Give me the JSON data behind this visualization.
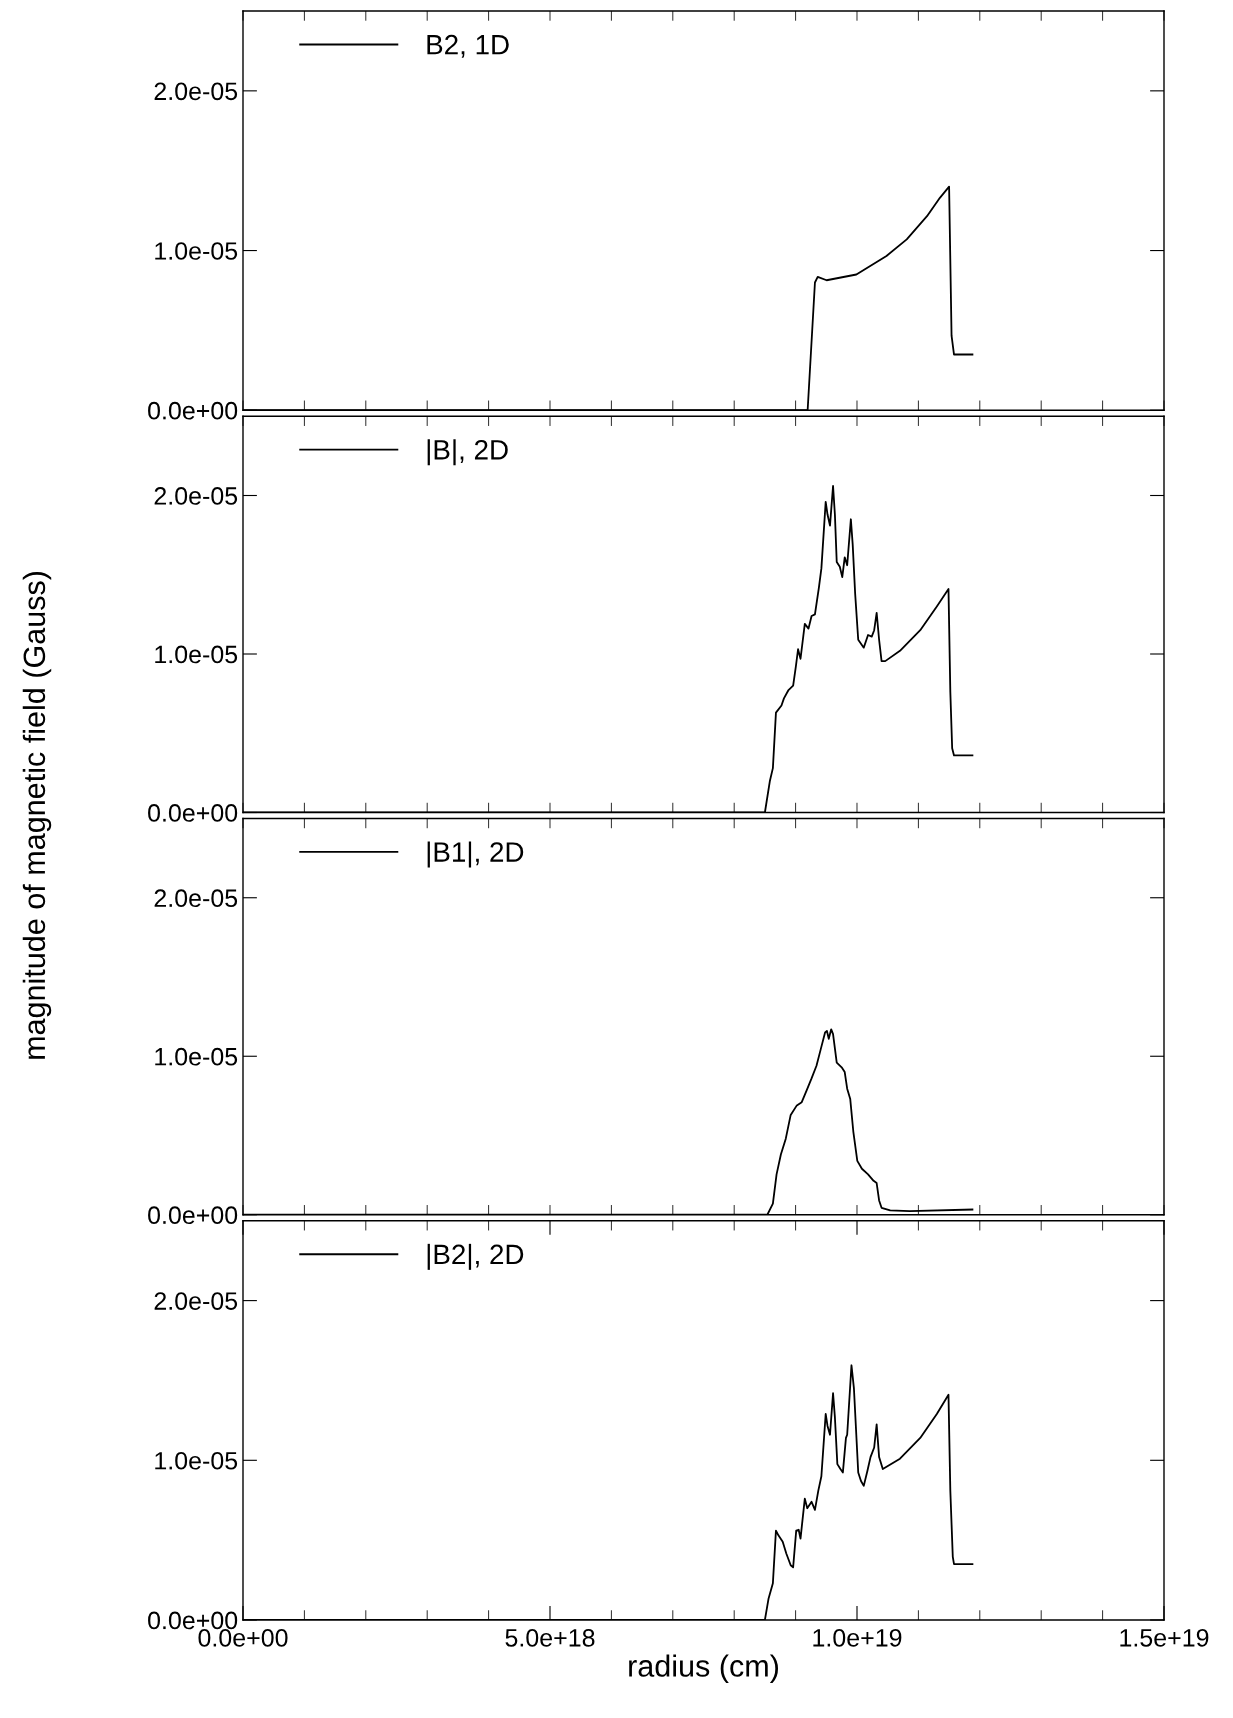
{
  "chart_data": [
    {
      "type": "line",
      "ylabel": "magnitude of magnetic field (Gauss)",
      "legend": "top left",
      "tick_labels": "y",
      "grid": false,
      "series": [
        {
          "name": "B2, 1D",
          "color": "#000000",
          "x": [
            0,
            9.196e+18,
            9.315e+18,
            9.36e+18,
            9.505e+18,
            9.99e+18,
            1.048e+19,
            1.081e+19,
            1.114e+19,
            1.135e+19,
            1.15e+19,
            1.154e+19,
            1.158e+19,
            1.188e+19
          ],
          "values": [
            0,
            0,
            8e-06,
            8.35e-06,
            8.14e-06,
            8.5e-06,
            9.66e-06,
            1.07e-05,
            1.215e-05,
            1.33e-05,
            1.4e-05,
            4.67e-06,
            3.49e-06,
            3.49e-06
          ]
        }
      ],
      "xlim": [
        0,
        1.5e+19
      ],
      "xticks": [
        {
          "value": 0,
          "label": null
        },
        {
          "value": 1e+18,
          "label": null
        },
        {
          "value": 2e+18,
          "label": null
        },
        {
          "value": 3e+18,
          "label": null
        },
        {
          "value": 4e+18,
          "label": null
        },
        {
          "value": 5e+18,
          "label": null
        },
        {
          "value": 6e+18,
          "label": null
        },
        {
          "value": 7e+18,
          "label": null
        },
        {
          "value": 8e+18,
          "label": null
        },
        {
          "value": 9e+18,
          "label": null
        },
        {
          "value": 1e+19,
          "label": null
        },
        {
          "value": 1.1e+19,
          "label": null
        },
        {
          "value": 1.2e+19,
          "label": null
        },
        {
          "value": 1.3e+19,
          "label": null
        },
        {
          "value": 1.4e+19,
          "label": null
        },
        {
          "value": 1.5e+19,
          "label": null
        }
      ],
      "ylim": [
        0,
        2.5e-05
      ],
      "yticks": [
        {
          "value": 0,
          "label": "0.0e+00"
        },
        {
          "value": 1e-05,
          "label": "1.0e-05"
        },
        {
          "value": 2e-05,
          "label": "2.0e-05"
        }
      ]
    },
    {
      "type": "line",
      "legend": "top left",
      "tick_labels": "y",
      "grid": false,
      "series": [
        {
          "name": "|B|, 2D",
          "color": "#000000",
          "x": [
            0,
            8.5e+18,
            8.58e+18,
            8.63e+18,
            8.68e+18,
            8.77e+18,
            8.81e+18,
            8.88e+18,
            8.96e+18,
            9.005e+18,
            9.04e+18,
            9.08e+18,
            9.15e+18,
            9.21e+18,
            9.26e+18,
            9.315e+18,
            9.38e+18,
            9.42e+18,
            9.49e+18,
            9.52e+18,
            9.56e+18,
            9.61e+18,
            9.64e+18,
            9.67e+18,
            9.72e+18,
            9.76e+18,
            9.8e+18,
            9.84e+18,
            9.9e+18,
            9.93e+18,
            9.97e+18,
            1.002e+19,
            1.011e+19,
            1.018e+19,
            1.024e+19,
            1.028e+19,
            1.032e+19,
            1.036e+19,
            1.04e+19,
            1.046e+19,
            1.07e+19,
            1.103e+19,
            1.13e+19,
            1.149e+19,
            1.152e+19,
            1.155e+19,
            1.158e+19,
            1.188e+19
          ],
          "values": [
            0,
            0,
            1.97e-06,
            2.8e-06,
            6.3e-06,
            6.75e-06,
            7.2e-06,
            7.7e-06,
            8e-06,
            9.24e-06,
            1.03e-05,
            9.7e-06,
            1.19e-05,
            1.16e-05,
            1.24e-05,
            1.25e-05,
            1.42e-05,
            1.54e-05,
            1.96e-05,
            1.88e-05,
            1.81e-05,
            2.06e-05,
            1.88e-05,
            1.58e-05,
            1.55e-05,
            1.485e-05,
            1.61e-05,
            1.56e-05,
            1.85e-05,
            1.69e-05,
            1.38e-05,
            1.09e-05,
            1.04e-05,
            1.12e-05,
            1.11e-05,
            1.15e-05,
            1.26e-05,
            1.09e-05,
            9.55e-06,
            9.55e-06,
            1.02e-05,
            1.15e-05,
            1.3e-05,
            1.41e-05,
            7.6e-06,
            4.05e-06,
            3.6e-06,
            3.6e-06
          ]
        }
      ],
      "xlim": [
        0,
        1.5e+19
      ],
      "xticks": [
        {
          "value": 0,
          "label": null
        },
        {
          "value": 1e+18,
          "label": null
        },
        {
          "value": 2e+18,
          "label": null
        },
        {
          "value": 3e+18,
          "label": null
        },
        {
          "value": 4e+18,
          "label": null
        },
        {
          "value": 5e+18,
          "label": null
        },
        {
          "value": 6e+18,
          "label": null
        },
        {
          "value": 7e+18,
          "label": null
        },
        {
          "value": 8e+18,
          "label": null
        },
        {
          "value": 9e+18,
          "label": null
        },
        {
          "value": 1e+19,
          "label": null
        },
        {
          "value": 1.1e+19,
          "label": null
        },
        {
          "value": 1.2e+19,
          "label": null
        },
        {
          "value": 1.3e+19,
          "label": null
        },
        {
          "value": 1.4e+19,
          "label": null
        },
        {
          "value": 1.5e+19,
          "label": null
        }
      ],
      "ylim": [
        0,
        2.5e-05
      ],
      "yticks": [
        {
          "value": 0,
          "label": "0.0e+00"
        },
        {
          "value": 1e-05,
          "label": "1.0e-05"
        },
        {
          "value": 2e-05,
          "label": "2.0e-05"
        }
      ]
    },
    {
      "type": "line",
      "legend": "top left",
      "tick_labels": "y",
      "grid": false,
      "series": [
        {
          "name": "|B1|, 2D",
          "color": "#000000",
          "x": [
            0,
            8.54e+18,
            8.63e+18,
            8.69e+18,
            8.76e+18,
            8.84e+18,
            8.92e+18,
            9.02e+18,
            9.1e+18,
            9.18e+18,
            9.26e+18,
            9.34e+18,
            9.41e+18,
            9.48e+18,
            9.51e+18,
            9.54e+18,
            9.58e+18,
            9.61e+18,
            9.67e+18,
            9.75e+18,
            9.8e+18,
            9.84e+18,
            9.89e+18,
            9.94e+18,
            1.0005e+19,
            1.008e+19,
            1.018e+19,
            1.027e+19,
            1.032e+19,
            1.036e+19,
            1.04e+19,
            1.054e+19,
            1.086e+19,
            1.188e+19
          ],
          "values": [
            0,
            0,
            7e-07,
            2.55e-06,
            3.8e-06,
            4.8e-06,
            6.3e-06,
            6.9e-06,
            7.1e-06,
            7.85e-06,
            8.6e-06,
            9.4e-06,
            1.045e-05,
            1.15e-05,
            1.16e-05,
            1.11e-05,
            1.17e-05,
            1.14e-05,
            9.6e-06,
            9.3e-06,
            9e-06,
            7.95e-06,
            7.3e-06,
            5.25e-06,
            3.4e-06,
            2.9e-06,
            2.55e-06,
            2.14e-06,
            2e-06,
            9e-07,
            4.4e-07,
            2.7e-07,
            2.3e-07,
            3.3e-07
          ]
        }
      ],
      "xlim": [
        0,
        1.5e+19
      ],
      "xticks": [
        {
          "value": 0,
          "label": null
        },
        {
          "value": 1e+18,
          "label": null
        },
        {
          "value": 2e+18,
          "label": null
        },
        {
          "value": 3e+18,
          "label": null
        },
        {
          "value": 4e+18,
          "label": null
        },
        {
          "value": 5e+18,
          "label": null
        },
        {
          "value": 6e+18,
          "label": null
        },
        {
          "value": 7e+18,
          "label": null
        },
        {
          "value": 8e+18,
          "label": null
        },
        {
          "value": 9e+18,
          "label": null
        },
        {
          "value": 1e+19,
          "label": null
        },
        {
          "value": 1.1e+19,
          "label": null
        },
        {
          "value": 1.2e+19,
          "label": null
        },
        {
          "value": 1.3e+19,
          "label": null
        },
        {
          "value": 1.4e+19,
          "label": null
        },
        {
          "value": 1.5e+19,
          "label": null
        }
      ],
      "ylim": [
        0,
        2.5e-05
      ],
      "yticks": [
        {
          "value": 0,
          "label": "0.0e+00"
        },
        {
          "value": 1e-05,
          "label": "1.0e-05"
        },
        {
          "value": 2e-05,
          "label": "2.0e-05"
        }
      ]
    },
    {
      "type": "line",
      "xlabel": "radius (cm)",
      "legend": "top left",
      "grid": false,
      "series": [
        {
          "name": "|B2|, 2D",
          "color": "#000000",
          "x": [
            0,
            8.5e+18,
            8.56e+18,
            8.63e+18,
            8.68e+18,
            8.72e+18,
            8.79e+18,
            8.85e+18,
            8.92e+18,
            8.96e+18,
            9.01e+18,
            9.05e+18,
            9.08e+18,
            9.15e+18,
            9.19e+18,
            9.26e+18,
            9.315e+18,
            9.37e+18,
            9.42e+18,
            9.49e+18,
            9.52e+18,
            9.56e+18,
            9.61e+18,
            9.64e+18,
            9.68e+18,
            9.73e+18,
            9.77e+18,
            9.82e+18,
            9.84e+18,
            9.91e+18,
            9.95e+18,
            1.002e+19,
            1.0065e+19,
            1.011e+19,
            1.017e+19,
            1.022e+19,
            1.028e+19,
            1.032e+19,
            1.036e+19,
            1.042e+19,
            1.07e+19,
            1.103e+19,
            1.13e+19,
            1.149e+19,
            1.152e+19,
            1.156e+19,
            1.158e+19,
            1.188e+19
          ],
          "values": [
            0,
            0,
            1.35e-06,
            2.3e-06,
            5.6e-06,
            5.3e-06,
            4.9e-06,
            4.15e-06,
            3.43e-06,
            3.3e-06,
            5.6e-06,
            5.65e-06,
            5.1e-06,
            7.6e-06,
            7e-06,
            7.4e-06,
            6.9e-06,
            8.1e-06,
            9e-06,
            1.29e-05,
            1.215e-05,
            1.16e-05,
            1.42e-05,
            1.27e-05,
            9.76e-06,
            9.45e-06,
            9.24e-06,
            1.14e-05,
            1.16e-05,
            1.595e-05,
            1.45e-05,
            9.24e-06,
            8.7e-06,
            8.4e-06,
            9.35e-06,
            1.02e-05,
            1.08e-05,
            1.225e-05,
            1.02e-05,
            9.45e-06,
            1.01e-05,
            1.14e-05,
            1.29e-05,
            1.41e-05,
            8.1e-06,
            3.95e-06,
            3.5e-06,
            3.5e-06
          ]
        }
      ],
      "xlim": [
        0,
        1.5e+19
      ],
      "xticks": [
        {
          "value": 0,
          "label": "0.0e+00"
        },
        {
          "value": 1e+18,
          "label": null
        },
        {
          "value": 2e+18,
          "label": null
        },
        {
          "value": 3e+18,
          "label": null
        },
        {
          "value": 4e+18,
          "label": null
        },
        {
          "value": 5e+18,
          "label": "5.0e+18"
        },
        {
          "value": 6e+18,
          "label": null
        },
        {
          "value": 7e+18,
          "label": null
        },
        {
          "value": 8e+18,
          "label": null
        },
        {
          "value": 9e+18,
          "label": null
        },
        {
          "value": 1e+19,
          "label": "1.0e+19"
        },
        {
          "value": 1.1e+19,
          "label": null
        },
        {
          "value": 1.2e+19,
          "label": null
        },
        {
          "value": 1.3e+19,
          "label": null
        },
        {
          "value": 1.4e+19,
          "label": null
        },
        {
          "value": 1.5e+19,
          "label": "1.5e+19"
        }
      ],
      "ylim": [
        0,
        2.5e-05
      ],
      "yticks": [
        {
          "value": 0,
          "label": "0.0e+00"
        },
        {
          "value": 1e-05,
          "label": "1.0e-05"
        },
        {
          "value": 2e-05,
          "label": "2.0e-05"
        }
      ]
    }
  ]
}
